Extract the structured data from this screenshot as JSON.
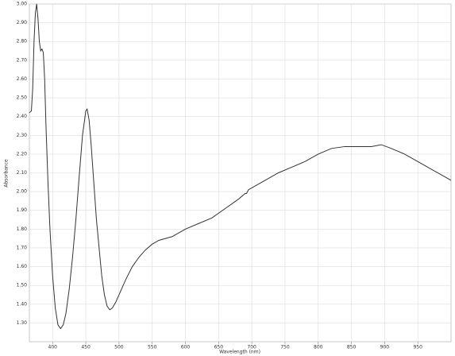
{
  "chart_data": {
    "type": "line",
    "xlabel": "Wavelength (nm)",
    "ylabel": "Absorbance",
    "x": [
      365,
      368,
      370,
      372,
      374,
      376,
      378,
      380,
      382,
      384,
      386,
      388,
      390,
      393,
      396,
      400,
      404,
      408,
      412,
      416,
      420,
      425,
      430,
      435,
      440,
      445,
      450,
      452,
      455,
      458,
      462,
      466,
      470,
      474,
      478,
      482,
      486,
      490,
      495,
      500,
      510,
      520,
      530,
      540,
      550,
      560,
      570,
      580,
      590,
      600,
      620,
      640,
      660,
      680,
      690,
      692,
      695,
      700,
      720,
      740,
      760,
      780,
      800,
      820,
      840,
      860,
      880,
      895,
      910,
      930,
      950,
      970,
      990,
      1000
    ],
    "series": [
      {
        "name": "Absorbance",
        "color": "#333333",
        "values": [
          2.42,
          2.43,
          2.55,
          2.8,
          2.95,
          3.0,
          2.92,
          2.8,
          2.75,
          2.76,
          2.74,
          2.6,
          2.35,
          2.05,
          1.8,
          1.55,
          1.38,
          1.29,
          1.27,
          1.29,
          1.35,
          1.48,
          1.65,
          1.85,
          2.08,
          2.3,
          2.43,
          2.44,
          2.38,
          2.25,
          2.05,
          1.85,
          1.7,
          1.55,
          1.45,
          1.39,
          1.37,
          1.38,
          1.41,
          1.45,
          1.53,
          1.6,
          1.65,
          1.69,
          1.72,
          1.74,
          1.75,
          1.76,
          1.78,
          1.8,
          1.83,
          1.86,
          1.91,
          1.96,
          1.99,
          1.99,
          2.01,
          2.02,
          2.06,
          2.1,
          2.13,
          2.16,
          2.2,
          2.23,
          2.24,
          2.24,
          2.24,
          2.25,
          2.23,
          2.2,
          2.16,
          2.12,
          2.08,
          2.06
        ]
      }
    ],
    "xlim": [
      365,
      1000
    ],
    "ylim": [
      1.2,
      3.0
    ],
    "xticks": [
      400,
      450,
      500,
      550,
      600,
      650,
      700,
      750,
      800,
      850,
      900,
      950
    ],
    "yticks": [
      {
        "value": 1.3,
        "label": "1.30"
      },
      {
        "value": 1.4,
        "label": "1.40"
      },
      {
        "value": 1.5,
        "label": "1.50"
      },
      {
        "value": 1.6,
        "label": "1.60"
      },
      {
        "value": 1.7,
        "label": "1.70"
      },
      {
        "value": 1.8,
        "label": "1.80"
      },
      {
        "value": 1.9,
        "label": "1.90"
      },
      {
        "value": 2.0,
        "label": "2.00"
      },
      {
        "value": 2.1,
        "label": "2.10"
      },
      {
        "value": 2.2,
        "label": "2.20"
      },
      {
        "value": 2.3,
        "label": "2.30"
      },
      {
        "value": 2.4,
        "label": "2.40"
      },
      {
        "value": 2.5,
        "label": "2.50"
      },
      {
        "value": 2.6,
        "label": "2.60"
      },
      {
        "value": 2.7,
        "label": "2.70"
      },
      {
        "value": 2.8,
        "label": "2.80"
      },
      {
        "value": 2.9,
        "label": "2.90"
      },
      {
        "value": 3.0,
        "label": "3.00"
      }
    ],
    "grid": true
  }
}
